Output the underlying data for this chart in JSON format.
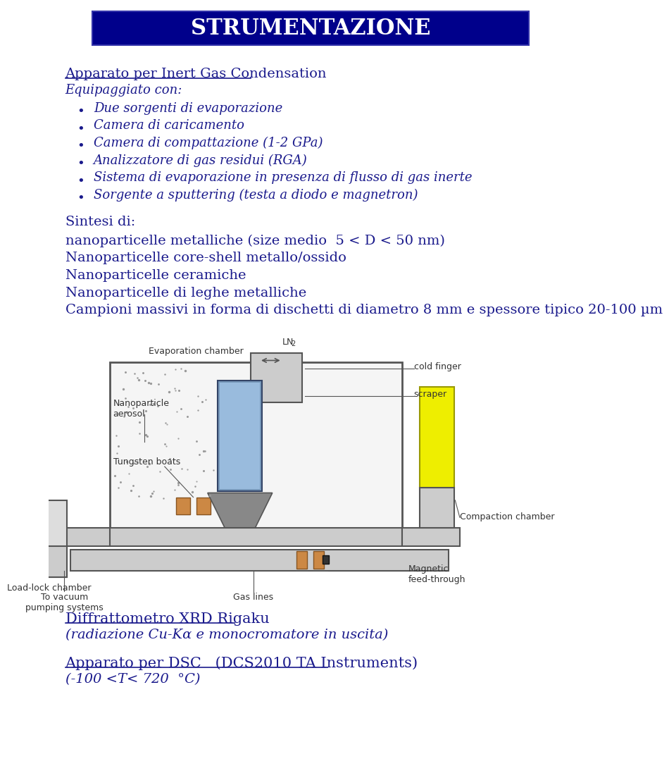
{
  "title": "STRUMENTAZIONE",
  "title_bg_color": "#00008B",
  "title_text_color": "#FFFFFF",
  "body_text_color": "#1a1a8c",
  "bg_color": "#FFFFFF",
  "heading1": "Apparato per Inert Gas Condensation",
  "heading1_italic": "Equipaggiato con:",
  "bullets": [
    "Due sorgenti di evaporazione",
    "Camera di caricamento",
    "Camera di compattazione (1-2 GPa)",
    "Analizzatore di gas residui (RGA)",
    "Sistema di evaporazione in presenza di flusso di gas inerte",
    "Sorgente a sputtering (testa a diodo e magnetron)"
  ],
  "sintesi_heading": "Sintesi di:",
  "sintesi_lines": [
    "nanoparticelle metalliche (size medio  5 < D < 50 nm)",
    "Nanoparticelle core-shell metallo/ossido",
    "Nanoparticelle ceramiche",
    "Nanoparticelle di leghe metalliche",
    "Campioni massivi in forma di dischetti di diametro 8 mm e spessore tipico 20-100 µm"
  ],
  "bottom_heading1": "Diffrattometro XRD Rigaku",
  "bottom_line1": "(radiazione Cu-Kα e monocromatore in uscita)",
  "bottom_heading2": "Apparato per DSC   (DCS2010 TA Instruments)",
  "bottom_line2": "(-100 <T< 720  °C)"
}
